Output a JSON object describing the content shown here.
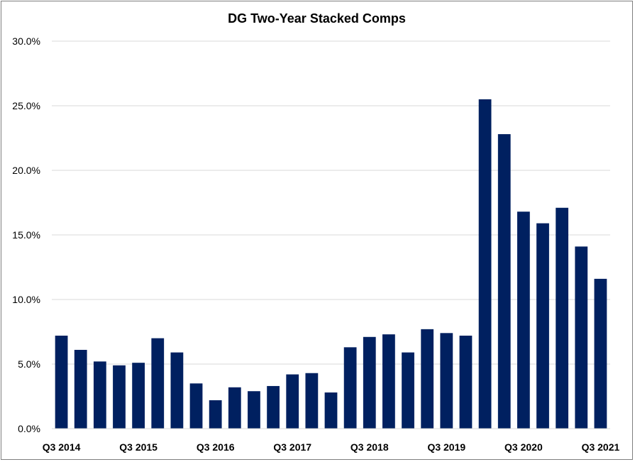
{
  "chart_data": {
    "type": "bar",
    "title": "DG Two-Year Stacked Comps",
    "xlabel": "",
    "ylabel": "",
    "ylim": [
      0,
      30
    ],
    "yticks": [
      "0.0%",
      "5.0%",
      "10.0%",
      "15.0%",
      "20.0%",
      "25.0%",
      "30.0%"
    ],
    "ytick_values": [
      0,
      5,
      10,
      15,
      20,
      25,
      30
    ],
    "grid": true,
    "legend": "none",
    "bar_color": "#002060",
    "categories": [
      "Q3 2014",
      "Q4 2014",
      "Q1 2015",
      "Q2 2015",
      "Q3 2015",
      "Q4 2015",
      "Q1 2016",
      "Q2 2016",
      "Q3 2016",
      "Q4 2016",
      "Q1 2017",
      "Q2 2017",
      "Q3 2017",
      "Q4 2017",
      "Q1 2018",
      "Q2 2018",
      "Q3 2018",
      "Q4 2018",
      "Q1 2019",
      "Q2 2019",
      "Q3 2019",
      "Q4 2019",
      "Q1 2020",
      "Q2 2020",
      "Q3 2020",
      "Q4 2020",
      "Q1 2021",
      "Q2 2021",
      "Q3 2021"
    ],
    "shown_labels": [
      "Q3 2014",
      "Q3 2015",
      "Q3 2016",
      "Q3 2017",
      "Q3 2018",
      "Q3 2019",
      "Q3 2020",
      "Q3 2021"
    ],
    "values": [
      7.2,
      6.1,
      5.2,
      4.9,
      5.1,
      7.0,
      5.9,
      3.5,
      2.2,
      3.2,
      2.9,
      3.3,
      4.2,
      4.3,
      2.8,
      6.3,
      7.1,
      7.3,
      5.9,
      7.7,
      7.4,
      7.2,
      25.5,
      22.8,
      16.8,
      15.9,
      17.1,
      14.1,
      11.6
    ]
  }
}
